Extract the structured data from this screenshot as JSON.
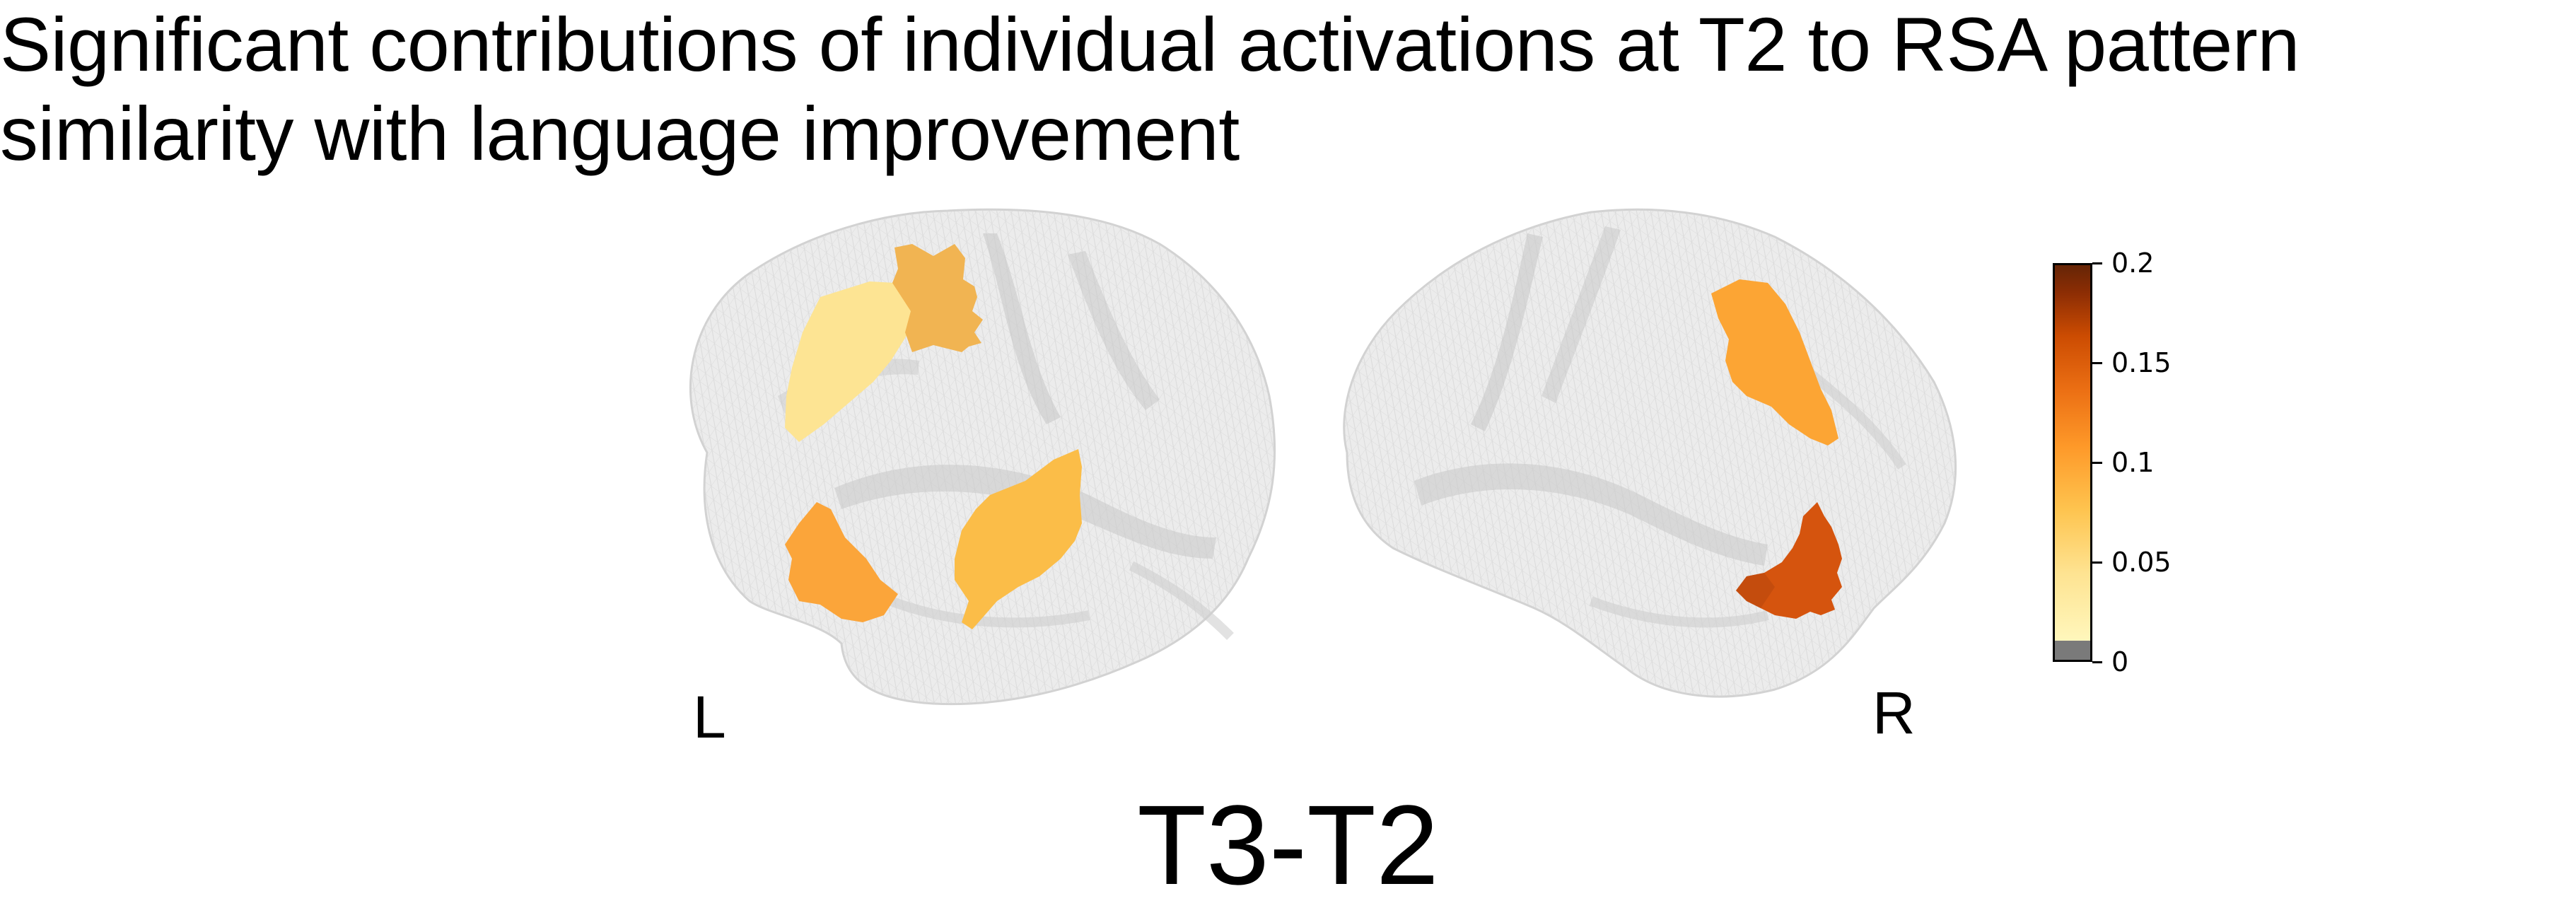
{
  "title": {
    "line1": "Significant contributions of individual activations at T2 to RSA pattern",
    "line2": "similarity with language improvement"
  },
  "hemispheres": {
    "left_label": "L",
    "right_label": "R"
  },
  "contrast_label": "T3-T2",
  "colorbar": {
    "colormap": "YlOrBr",
    "range": [
      0,
      0.2
    ],
    "ticks": [
      "0",
      "0.05",
      "0.1",
      "0.15",
      "0.2"
    ],
    "colors": {
      "gray_zero": "#7a7a7a",
      "low": "#fff7bc",
      "high": "#662506"
    }
  },
  "regions": [
    {
      "hemisphere": "left",
      "value": 0.03,
      "color": "#fde493"
    },
    {
      "hemisphere": "left",
      "value": 0.075,
      "color": "#f1b452"
    },
    {
      "hemisphere": "left",
      "value": 0.09,
      "color": "#fba53a"
    },
    {
      "hemisphere": "left",
      "value": 0.07,
      "color": "#fbbd48"
    },
    {
      "hemisphere": "right",
      "value": 0.1,
      "color": "#fca534"
    },
    {
      "hemisphere": "right",
      "value": 0.15,
      "color": "#d5540e"
    }
  ]
}
